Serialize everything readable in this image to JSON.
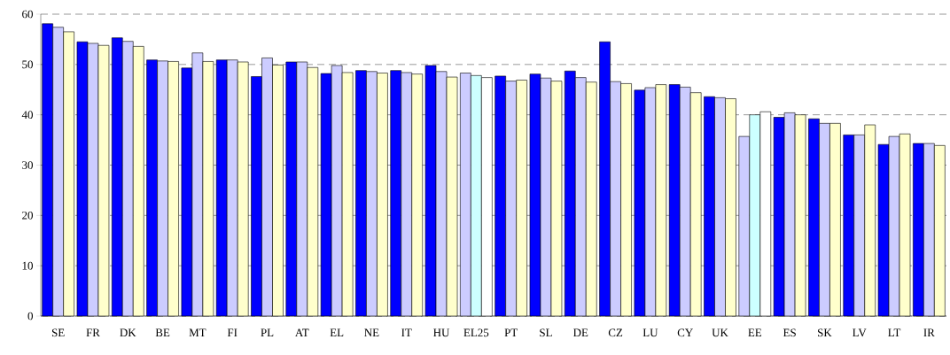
{
  "chart_data": {
    "type": "bar",
    "categories": [
      "SE",
      "FR",
      "DK",
      "BE",
      "MT",
      "FI",
      "PL",
      "AT",
      "EL",
      "NE",
      "IT",
      "HU",
      "EL25",
      "PT",
      "SL",
      "DE",
      "CZ",
      "LU",
      "CY",
      "UK",
      "EE",
      "ES",
      "SK",
      "LV",
      "LT",
      "IR"
    ],
    "series": [
      {
        "values": [
          58.1,
          54.5,
          55.3,
          50.9,
          49.3,
          50.9,
          47.6,
          50.5,
          48.2,
          48.8,
          48.8,
          49.8,
          48.3,
          47.7,
          48.1,
          48.7,
          54.5,
          44.9,
          46.0,
          43.6,
          35.7,
          39.5,
          39.2,
          36.0,
          34.1,
          34.3
        ],
        "colors": [
          "#0000ff",
          "#0000ff",
          "#0000ff",
          "#0000ff",
          "#0000ff",
          "#0000ff",
          "#0000ff",
          "#0000ff",
          "#0000ff",
          "#0000ff",
          "#0000ff",
          "#0000ff",
          "#ccccff",
          "#0000ff",
          "#0000ff",
          "#0000ff",
          "#0000ff",
          "#0000ff",
          "#0000ff",
          "#0000ff",
          "#ccccff",
          "#0000ff",
          "#0000ff",
          "#0000ff",
          "#0000ff",
          "#0000ff"
        ]
      },
      {
        "values": [
          57.4,
          54.2,
          54.6,
          50.7,
          52.3,
          50.9,
          51.3,
          50.5,
          49.8,
          48.6,
          48.4,
          48.6,
          47.8,
          46.7,
          47.3,
          47.4,
          46.6,
          45.4,
          45.5,
          43.4,
          40.0,
          40.4,
          38.3,
          36.0,
          35.7,
          34.3
        ],
        "colors": [
          "#ccccff",
          "#ccccff",
          "#ccccff",
          "#ccccff",
          "#ccccff",
          "#ccccff",
          "#ccccff",
          "#ccccff",
          "#ccccff",
          "#ccccff",
          "#ccccff",
          "#ccccff",
          "#ccffff",
          "#ccccff",
          "#ccccff",
          "#ccccff",
          "#ccccff",
          "#ccccff",
          "#ccccff",
          "#ccccff",
          "#ccffff",
          "#ccccff",
          "#ccccff",
          "#ccccff",
          "#ccccff",
          "#ccccff"
        ]
      },
      {
        "values": [
          56.5,
          53.8,
          53.6,
          50.6,
          50.6,
          50.5,
          49.9,
          49.4,
          48.4,
          48.3,
          48.1,
          47.5,
          47.4,
          46.9,
          46.7,
          46.5,
          46.2,
          46.0,
          44.4,
          43.2,
          40.6,
          40.0,
          38.3,
          38.0,
          36.2,
          33.9
        ],
        "colors": [
          "#ffffcc",
          "#ffffcc",
          "#ffffcc",
          "#ffffcc",
          "#ffffcc",
          "#ffffcc",
          "#ffffcc",
          "#ffffcc",
          "#ffffcc",
          "#ffffcc",
          "#ffffcc",
          "#ffffcc",
          "#ffffff",
          "#ffffcc",
          "#ffffcc",
          "#ffffcc",
          "#ffffcc",
          "#ffffcc",
          "#ffffcc",
          "#ffffcc",
          "#ffffff",
          "#ffffcc",
          "#ffffcc",
          "#ffffcc",
          "#ffffcc",
          "#ffffcc"
        ]
      }
    ],
    "ylim": [
      0,
      60
    ],
    "yticks": [
      0,
      10,
      20,
      30,
      40,
      50,
      60
    ],
    "grid": "y"
  }
}
